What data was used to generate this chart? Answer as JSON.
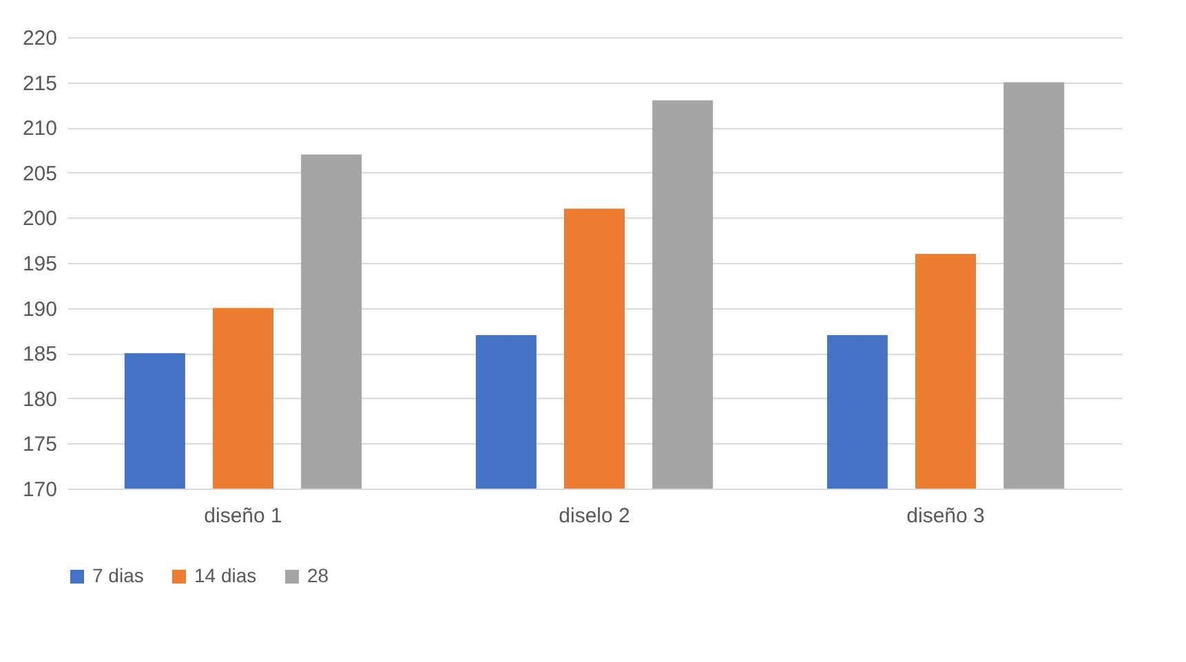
{
  "chart_data": {
    "type": "bar",
    "categories": [
      "diseño 1",
      "diselo 2",
      "diseño 3"
    ],
    "series": [
      {
        "name": "7 dias",
        "color": "#4472c4",
        "values": [
          185,
          187,
          187
        ]
      },
      {
        "name": "14 dias",
        "color": "#ed7d31",
        "values": [
          190,
          201,
          196
        ]
      },
      {
        "name": "28",
        "color": "#a5a5a5",
        "values": [
          207,
          213,
          215
        ]
      }
    ],
    "ylim": [
      170,
      220
    ],
    "yticks": [
      170,
      175,
      180,
      185,
      190,
      195,
      200,
      205,
      210,
      215,
      220
    ],
    "grid": "y",
    "legend": "bottom"
  }
}
